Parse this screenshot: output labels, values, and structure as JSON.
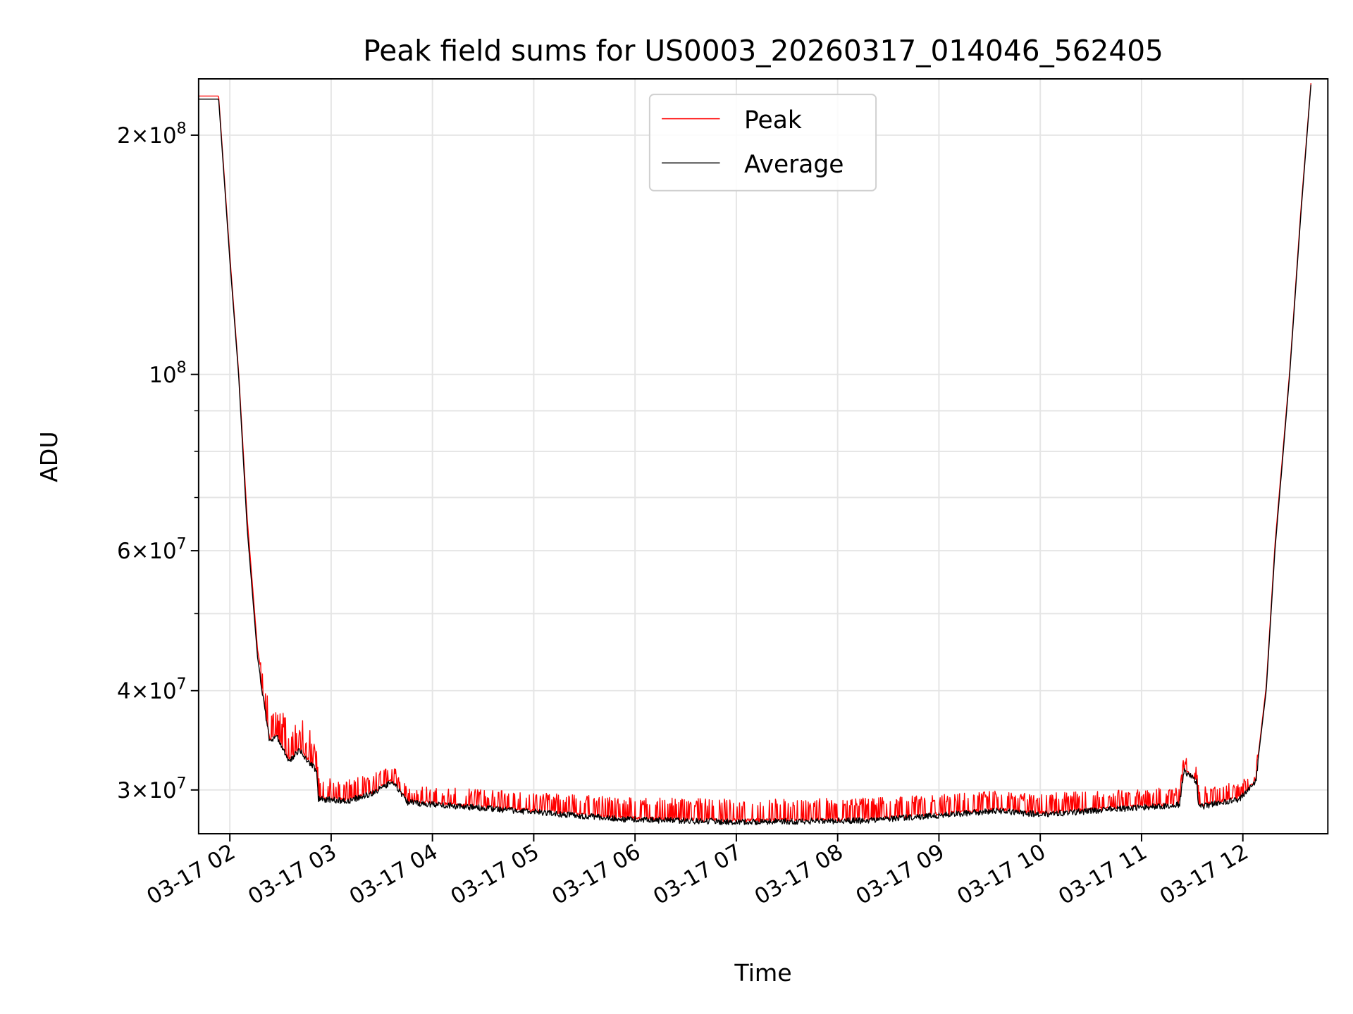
{
  "chart_data": {
    "type": "line",
    "title": "Peak field sums for US0003_20260317_014046_562405",
    "xlabel": "Time",
    "ylabel": "ADU",
    "yscale": "log",
    "grid": true,
    "legend_placement": "upper-center",
    "x_unit": "hours since 2026-03-17 00:00",
    "xlim": [
      1.69,
      12.84
    ],
    "ylim": [
      26500000,
      235500000
    ],
    "x_ticks": [
      {
        "value": 2,
        "label": "03-17 02"
      },
      {
        "value": 3,
        "label": "03-17 03"
      },
      {
        "value": 4,
        "label": "03-17 04"
      },
      {
        "value": 5,
        "label": "03-17 05"
      },
      {
        "value": 6,
        "label": "03-17 06"
      },
      {
        "value": 7,
        "label": "03-17 07"
      },
      {
        "value": 8,
        "label": "03-17 08"
      },
      {
        "value": 9,
        "label": "03-17 09"
      },
      {
        "value": 10,
        "label": "03-17 10"
      },
      {
        "value": 11,
        "label": "03-17 11"
      },
      {
        "value": 12,
        "label": "03-17 12"
      }
    ],
    "y_ticks": [
      {
        "value": 30000000,
        "mant": "3",
        "exp": "7"
      },
      {
        "value": 40000000,
        "mant": "4",
        "exp": "7"
      },
      {
        "value": 60000000,
        "mant": "6",
        "exp": "7"
      },
      {
        "value": 100000000,
        "mant": "",
        "exp": "8"
      },
      {
        "value": 200000000,
        "mant": "2",
        "exp": "8"
      }
    ],
    "y_minor_ticks": [
      50000000,
      70000000,
      80000000,
      90000000
    ],
    "series": [
      {
        "name": "Peak",
        "color": "#ff0000",
        "points": [
          [
            1.692,
            224000000
          ],
          [
            1.889,
            224000000
          ],
          [
            2.0,
            141000000
          ],
          [
            2.086,
            101000000
          ],
          [
            2.171,
            66000000
          ],
          [
            2.274,
            45000000
          ],
          [
            2.394,
            36500000
          ],
          [
            2.454,
            37000000
          ],
          [
            2.582,
            34500000
          ],
          [
            2.685,
            35000000
          ],
          [
            2.856,
            33000000
          ],
          [
            2.873,
            30300000
          ],
          [
            3.156,
            30200000
          ],
          [
            3.413,
            30600000
          ],
          [
            3.601,
            31800000
          ],
          [
            3.755,
            29600000
          ],
          [
            4.354,
            29400000
          ],
          [
            4.868,
            29100000
          ],
          [
            5.896,
            28700000
          ],
          [
            7.009,
            28500000
          ],
          [
            8.293,
            28600000
          ],
          [
            9.577,
            29200000
          ],
          [
            10.005,
            29000000
          ],
          [
            11.375,
            29500000
          ],
          [
            11.418,
            32400000
          ],
          [
            11.546,
            31200000
          ],
          [
            11.563,
            29600000
          ],
          [
            11.974,
            29900000
          ],
          [
            12.128,
            31200000
          ],
          [
            12.231,
            40500000
          ],
          [
            12.317,
            61000000
          ],
          [
            12.462,
            101000000
          ],
          [
            12.574,
            162000000
          ],
          [
            12.676,
            236000000
          ]
        ]
      },
      {
        "name": "Average",
        "color": "#000000",
        "points": [
          [
            1.692,
            222000000
          ],
          [
            1.889,
            222000000
          ],
          [
            2.0,
            139000000
          ],
          [
            2.086,
            100000000
          ],
          [
            2.171,
            64000000
          ],
          [
            2.274,
            44000000
          ],
          [
            2.394,
            34800000
          ],
          [
            2.454,
            35500000
          ],
          [
            2.582,
            32900000
          ],
          [
            2.685,
            34000000
          ],
          [
            2.856,
            32000000
          ],
          [
            2.873,
            29500000
          ],
          [
            3.156,
            29300000
          ],
          [
            3.413,
            30000000
          ],
          [
            3.601,
            31000000
          ],
          [
            3.755,
            29200000
          ],
          [
            4.354,
            28800000
          ],
          [
            4.868,
            28500000
          ],
          [
            5.896,
            27800000
          ],
          [
            7.009,
            27600000
          ],
          [
            8.293,
            27700000
          ],
          [
            9.577,
            28500000
          ],
          [
            10.005,
            28200000
          ],
          [
            11.375,
            29000000
          ],
          [
            11.418,
            32000000
          ],
          [
            11.546,
            31000000
          ],
          [
            11.563,
            28800000
          ],
          [
            11.974,
            29500000
          ],
          [
            12.128,
            31000000
          ],
          [
            12.231,
            40000000
          ],
          [
            12.317,
            60000000
          ],
          [
            12.462,
            100000000
          ],
          [
            12.574,
            160000000
          ],
          [
            12.676,
            235000000
          ]
        ]
      }
    ]
  }
}
